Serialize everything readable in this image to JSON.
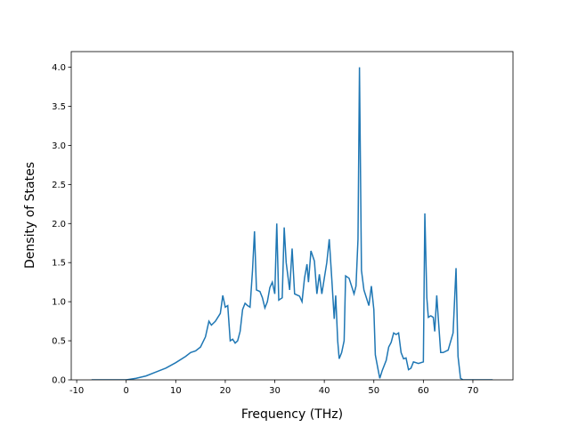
{
  "chart_data": {
    "type": "line",
    "x_label": "Frequency (THz)",
    "y_label": "Density of States",
    "color": "#1f77b4",
    "x": [
      -7,
      0,
      2,
      4,
      6,
      8,
      10,
      12,
      13,
      14,
      15,
      16,
      16.7,
      17.2,
      18,
      19,
      19.5,
      20,
      20.5,
      21,
      21.5,
      22,
      22.5,
      23,
      23.5,
      24,
      24.5,
      25,
      25.5,
      25.9,
      26.3,
      27,
      27.5,
      28,
      28.5,
      29,
      29.5,
      30,
      30.4,
      30.8,
      31.5,
      31.9,
      32.3,
      33,
      33.5,
      34,
      35,
      35.5,
      36,
      36.5,
      36.8,
      37.3,
      38,
      38.5,
      39,
      39.5,
      40,
      40.5,
      41,
      41.5,
      42,
      42.3,
      42.7,
      43,
      43.5,
      44,
      44.3,
      45,
      45.5,
      46,
      46.4,
      46.8,
      47.1,
      47.5,
      48,
      48.5,
      49,
      49.5,
      50,
      50.3,
      50.8,
      51.2,
      51.7,
      52.5,
      53,
      53.5,
      54,
      54.5,
      55,
      55.5,
      56,
      56.5,
      57,
      57.5,
      58,
      59,
      60,
      60.3,
      60.7,
      61,
      61.5,
      62,
      62.3,
      62.7,
      63,
      63.5,
      64,
      65,
      66,
      66.6,
      67,
      67.5,
      68,
      74
    ],
    "values": [
      0,
      0,
      0.02,
      0.05,
      0.1,
      0.15,
      0.22,
      0.3,
      0.35,
      0.37,
      0.42,
      0.55,
      0.75,
      0.7,
      0.75,
      0.85,
      1.08,
      0.93,
      0.95,
      0.5,
      0.52,
      0.47,
      0.5,
      0.62,
      0.9,
      0.98,
      0.95,
      0.93,
      1.4,
      1.9,
      1.15,
      1.13,
      1.05,
      0.92,
      1.0,
      1.18,
      1.25,
      1.1,
      2.0,
      1.02,
      1.05,
      1.95,
      1.5,
      1.15,
      1.68,
      1.1,
      1.07,
      1.0,
      1.3,
      1.48,
      1.25,
      1.65,
      1.52,
      1.1,
      1.35,
      1.1,
      1.3,
      1.5,
      1.8,
      1.3,
      0.78,
      1.08,
      0.5,
      0.27,
      0.35,
      0.5,
      1.33,
      1.3,
      1.2,
      1.1,
      1.2,
      1.8,
      4.0,
      1.4,
      1.15,
      1.05,
      0.95,
      1.2,
      0.9,
      0.32,
      0.15,
      0.02,
      0.12,
      0.25,
      0.42,
      0.48,
      0.6,
      0.58,
      0.6,
      0.35,
      0.27,
      0.28,
      0.13,
      0.15,
      0.23,
      0.21,
      0.23,
      2.13,
      1.05,
      0.8,
      0.82,
      0.8,
      0.62,
      1.08,
      0.8,
      0.35,
      0.35,
      0.38,
      0.6,
      1.43,
      0.3,
      0.02,
      0,
      0
    ],
    "xlim": [
      -11.1,
      78.1
    ],
    "ylim": [
      0,
      4.2
    ],
    "xticks": [
      -10,
      0,
      10,
      20,
      30,
      40,
      50,
      60,
      70
    ],
    "yticks": [
      {
        "value": 0,
        "label": "0.0"
      },
      {
        "value": 0.5,
        "label": "0.5"
      },
      {
        "value": 1,
        "label": "1.0"
      },
      {
        "value": 1.5,
        "label": "1.5"
      },
      {
        "value": 2,
        "label": "2.0"
      },
      {
        "value": 2.5,
        "label": "2.5"
      },
      {
        "value": 3,
        "label": "3.0"
      },
      {
        "value": 3.5,
        "label": "3.5"
      },
      {
        "value": 4,
        "label": "4.0"
      }
    ]
  }
}
